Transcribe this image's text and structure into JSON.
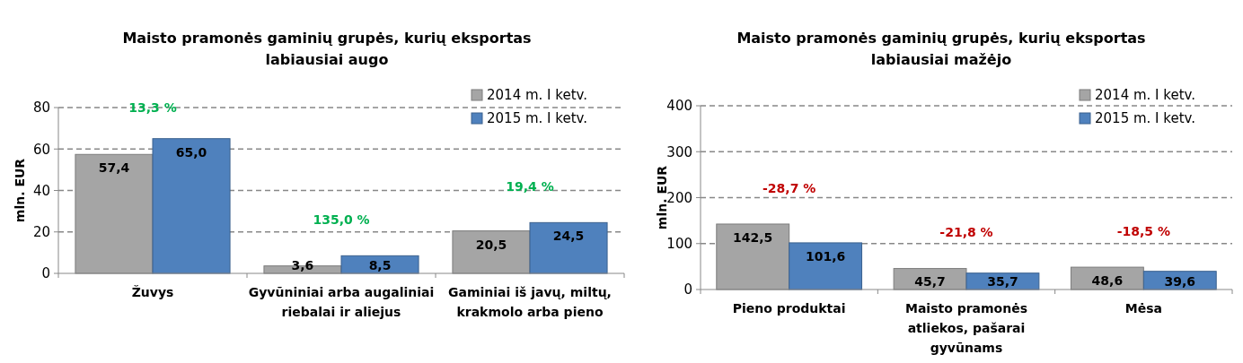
{
  "chart_data": [
    {
      "type": "bar",
      "title": "Maisto pramonės gaminių grupės, kurių eksportas labiausiai augo",
      "ylabel": "mln. EUR",
      "categories": [
        "Žuvys",
        "Gyvūniniai arba augaliniai riebalai  ir aliejus",
        "Gaminiai iš javų, miltų, krakmolo arba pieno"
      ],
      "series": [
        {
          "name": "2014 m. I ketv.",
          "color": "#a5a5a5",
          "values": [
            57.4,
            3.6,
            20.5
          ],
          "value_labels": [
            "57,4",
            "3,6",
            "20,5"
          ]
        },
        {
          "name": "2015 m. I ketv.",
          "color": "#4f81bd",
          "values": [
            65.0,
            8.5,
            24.5
          ],
          "value_labels": [
            "65,0",
            "8,5",
            "24,5"
          ]
        }
      ],
      "ylim": [
        0,
        80
      ],
      "yticks": [
        0,
        20,
        40,
        60,
        80
      ],
      "grid": "y",
      "legend": "top right",
      "annotations": [
        "13,3 %",
        "135,0 %",
        "19,4 %"
      ]
    },
    {
      "type": "bar",
      "title": "Maisto pramonės gaminių grupės, kurių eksportas labiausiai mažėjo",
      "ylabel": "mln. EUR",
      "categories": [
        "Pieno produktai",
        "Maisto pramonės atliekos, pašarai gyvūnams",
        "Mėsa"
      ],
      "series": [
        {
          "name": "2014 m. I ketv.",
          "color": "#a5a5a5",
          "values": [
            142.5,
            45.7,
            48.6
          ],
          "value_labels": [
            "142,5",
            "45,7",
            "48,6"
          ]
        },
        {
          "name": "2015 m. I ketv.",
          "color": "#4f81bd",
          "values": [
            101.6,
            35.7,
            39.6
          ],
          "value_labels": [
            "101,6",
            "35,7",
            "39,6"
          ]
        }
      ],
      "ylim": [
        0,
        400
      ],
      "yticks": [
        0,
        100,
        200,
        300,
        400
      ],
      "grid": "y",
      "legend": "top right",
      "annotations": [
        "-28,7 %",
        "-21,8 %",
        "-18,5 %"
      ]
    }
  ]
}
